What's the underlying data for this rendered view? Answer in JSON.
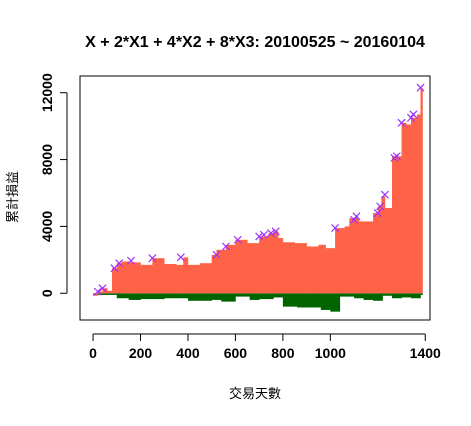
{
  "chart_data": {
    "type": "area",
    "title": "X + 2*X1 + 4*X2 + 8*X3: 20100525 ~ 20160104",
    "xlabel": "交易天數",
    "ylabel": "累計損益",
    "xlim": [
      -55,
      1420
    ],
    "ylim": [
      -1600,
      13000
    ],
    "x_ticks": [
      0,
      200,
      400,
      600,
      800,
      1000,
      1400
    ],
    "x_tick_labels": [
      "0",
      "200",
      "400",
      "600",
      "800",
      "1000",
      "1400"
    ],
    "y_ticks": [
      0,
      4000,
      8000,
      12000
    ],
    "y_tick_labels": [
      "0",
      "4000",
      "8000",
      "12000"
    ],
    "grid": false,
    "colors": {
      "profit_area": "#FF6347",
      "drawdown_area": "#006400",
      "new_high_marker": "#9B30FF",
      "background": "#FFFFFF"
    },
    "series": [
      {
        "name": "",
        "kind": "cumulative_profit",
        "x": [
          0,
          20,
          40,
          60,
          80,
          100,
          120,
          150,
          200,
          250,
          300,
          350,
          380,
          400,
          450,
          500,
          520,
          560,
          600,
          650,
          700,
          740,
          760,
          780,
          800,
          850,
          900,
          950,
          980,
          1000,
          1020,
          1060,
          1080,
          1100,
          1120,
          1160,
          1180,
          1200,
          1215,
          1230,
          1260,
          1280,
          1300,
          1320,
          1340,
          1365,
          1380
        ],
        "values": [
          -150,
          100,
          300,
          150,
          1500,
          1800,
          1900,
          1850,
          1700,
          2100,
          1750,
          1700,
          2150,
          1700,
          1800,
          2300,
          2600,
          2900,
          3200,
          3000,
          3400,
          3600,
          3700,
          3300,
          3050,
          3000,
          2800,
          2900,
          2700,
          2700,
          3900,
          4000,
          4500,
          4500,
          4300,
          4300,
          4800,
          5200,
          5800,
          5100,
          8200,
          8200,
          10200,
          10100,
          10500,
          10700,
          12300
        ]
      },
      {
        "name": "",
        "kind": "drawdown",
        "x": [
          0,
          100,
          150,
          200,
          300,
          400,
          500,
          540,
          600,
          660,
          700,
          760,
          800,
          860,
          900,
          960,
          1000,
          1040,
          1100,
          1140,
          1180,
          1220,
          1260,
          1300,
          1340,
          1380
        ],
        "values": [
          -100,
          -300,
          -400,
          -350,
          -300,
          -450,
          -400,
          -500,
          -200,
          -400,
          -350,
          -250,
          -800,
          -850,
          -850,
          -1000,
          -1100,
          -200,
          -300,
          -400,
          -450,
          -150,
          -300,
          -250,
          -300,
          -100
        ]
      },
      {
        "name": "",
        "kind": "new_high_markers",
        "x": [
          20,
          40,
          90,
          110,
          160,
          250,
          370,
          520,
          560,
          610,
          700,
          720,
          750,
          770,
          1020,
          1100,
          1110,
          1200,
          1210,
          1230,
          1270,
          1280,
          1300,
          1340,
          1350,
          1380
        ],
        "values": [
          100,
          300,
          1500,
          1800,
          1950,
          2100,
          2150,
          2300,
          2800,
          3200,
          3400,
          3500,
          3600,
          3700,
          3900,
          4400,
          4600,
          4800,
          5200,
          5900,
          8100,
          8200,
          10200,
          10500,
          10700,
          12300
        ]
      }
    ]
  }
}
